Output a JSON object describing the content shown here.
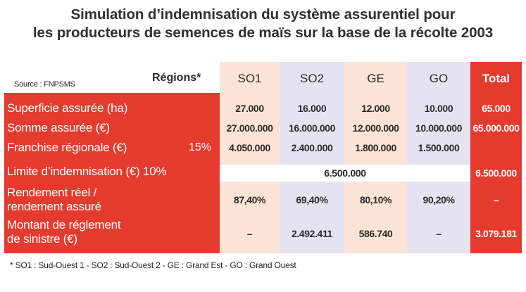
{
  "title_line1": "Simulation d’indemnisation du système assurentiel pour",
  "title_line2": "les producteurs de semences de maïs sur la base de la récolte 2003",
  "source": "Source : FNPSMS",
  "header": {
    "regions": "Régions*",
    "so1": "SO1",
    "so2": "SO2",
    "ge": "GE",
    "go": "GO",
    "total": "Total"
  },
  "rows": {
    "superficie": {
      "label": "Superficie assurée (ha)",
      "so1": "27.000",
      "so2": "16.000",
      "ge": "12.000",
      "go": "10.000",
      "total": "65.000"
    },
    "somme": {
      "label": "Somme assurée (€)",
      "so1": "27.000.000",
      "so2": "16.000.000",
      "ge": "12.000.000",
      "go": "10.000.000",
      "total": "65.000.000"
    },
    "franchise": {
      "label": "Franchise régionale (€)",
      "pct": "15%",
      "so1": "4.050.000",
      "so2": "2.400.000",
      "ge": "1.800.000",
      "go": "1.500.000",
      "total": ""
    },
    "limite": {
      "label": "Limite d’indemnisation (€) 10%",
      "merged": "6.500.000",
      "total": "6.500.000"
    },
    "rendement": {
      "label_line1": "Rendement réel /",
      "label_line2": "rendement assuré",
      "so1": "87,40%",
      "so2": "69,40%",
      "ge": "80,10%",
      "go": "90,20%",
      "total": "–"
    },
    "montant": {
      "label_line1": "Montant de réglement",
      "label_line2": "de sinistre (€)",
      "so1": "–",
      "so2": "2.492.411",
      "ge": "586.740",
      "go": "–",
      "total": "3.079.181"
    }
  },
  "footnote": "* SO1 : Sud-Ouest 1 - SO2 : Sud-Ouest 2 - GE : Grand Est - GO : Grand Ouest",
  "colors": {
    "red": "#e53b2e",
    "peach": "#fbe4d6",
    "lavender": "#e6e3f1"
  }
}
